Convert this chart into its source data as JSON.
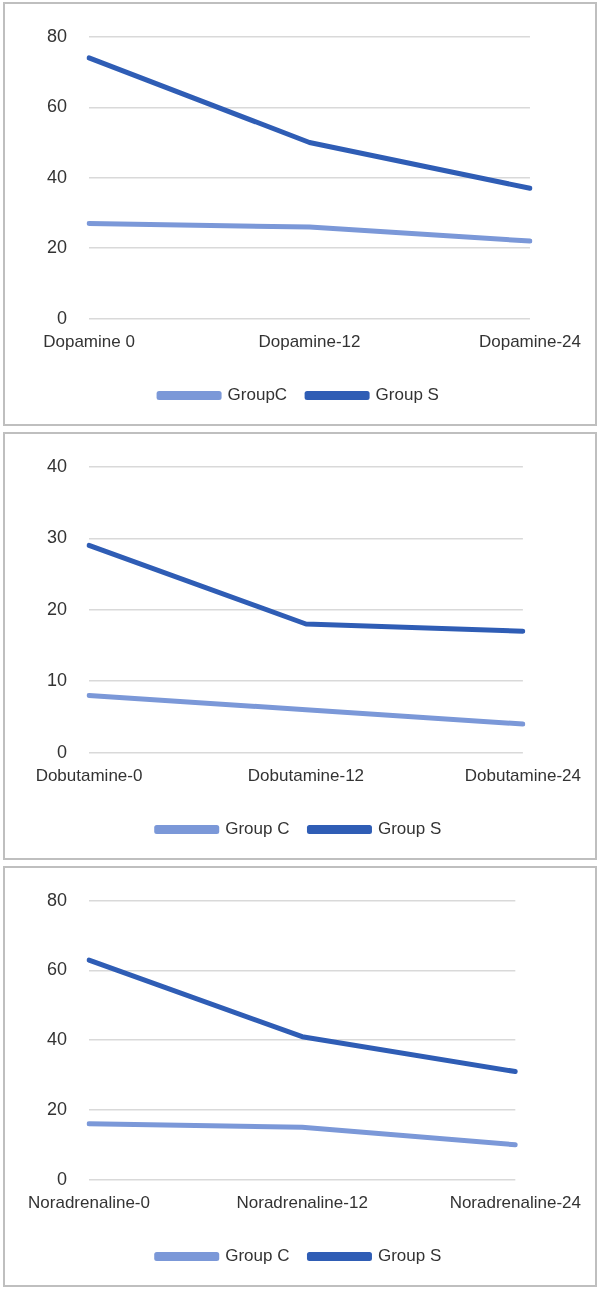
{
  "chart_data": [
    {
      "type": "line",
      "categories": [
        "Dopamine 0",
        "Dopamine-12",
        "Dopamine-24"
      ],
      "series": [
        {
          "name": "GroupC",
          "color": "#7b98d8",
          "values": [
            27,
            26,
            22
          ]
        },
        {
          "name": "Group S",
          "color": "#2f5db5",
          "values": [
            74,
            50,
            37
          ]
        }
      ],
      "ylim": [
        0,
        80
      ],
      "yticks": [
        0,
        20,
        40,
        60,
        80
      ],
      "grid": "y",
      "legend": "bottom",
      "marker": "none"
    },
    {
      "type": "line",
      "categories": [
        "Dobutamine-0",
        "Dobutamine-12",
        "Dobutamine-24"
      ],
      "series": [
        {
          "name": "Group C",
          "color": "#7b98d8",
          "values": [
            8,
            6,
            4
          ]
        },
        {
          "name": "Group S",
          "color": "#2f5db5",
          "values": [
            29,
            18,
            17
          ]
        }
      ],
      "ylim": [
        0,
        40
      ],
      "yticks": [
        0,
        10,
        20,
        30,
        40
      ],
      "grid": "y",
      "legend": "bottom",
      "marker": "none"
    },
    {
      "type": "line",
      "categories": [
        "Noradrenaline-0",
        "Noradrenaline-12",
        "Noradrenaline-24"
      ],
      "series": [
        {
          "name": "Group C",
          "color": "#7b98d8",
          "values": [
            16,
            15,
            10
          ]
        },
        {
          "name": "Group S",
          "color": "#2f5db5",
          "values": [
            63,
            41,
            31
          ]
        }
      ],
      "ylim": [
        0,
        80
      ],
      "yticks": [
        0,
        20,
        40,
        60,
        80
      ],
      "grid": "y",
      "legend": "bottom",
      "marker": "none"
    }
  ]
}
